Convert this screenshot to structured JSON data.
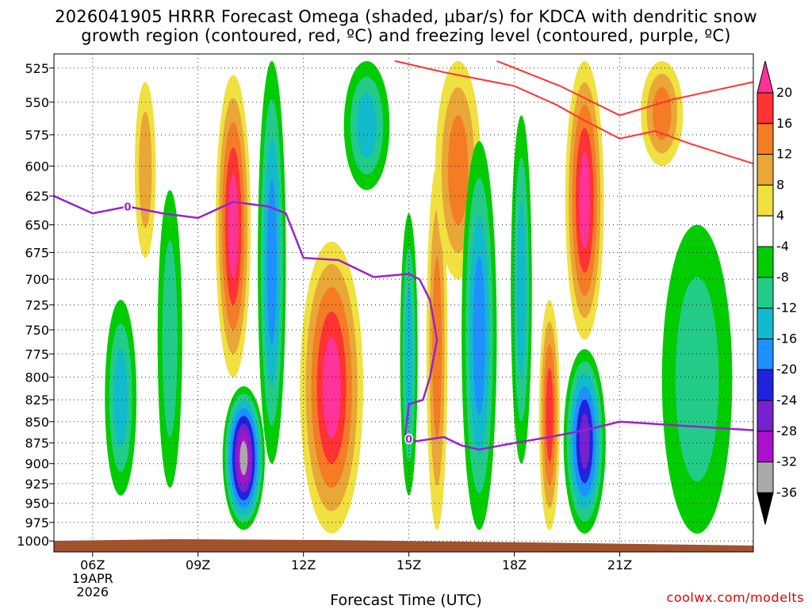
{
  "title_line1": "2026041905 HRRR Forecast Omega (shaded, µbar/s) for KDCA with dendritic snow",
  "title_line2": "growth region (contoured, red, ºC) and freezing level (contoured, purple, ºC)",
  "xlabel": "Forecast Time (UTC)",
  "credit": "coolwx.com/modelts",
  "chart_data": {
    "type": "heatmap",
    "x_domain_hours": [
      4.9,
      24.8
    ],
    "y_axis": {
      "label": "",
      "ticks": [
        525,
        550,
        575,
        600,
        625,
        650,
        675,
        700,
        725,
        750,
        775,
        800,
        825,
        850,
        875,
        900,
        925,
        950,
        975,
        1000
      ],
      "log_scale": true
    },
    "x_ticks": [
      {
        "hour": 6,
        "label": "06Z",
        "sub1": "19APR",
        "sub2": "2026"
      },
      {
        "hour": 9,
        "label": "09Z"
      },
      {
        "hour": 12,
        "label": "12Z"
      },
      {
        "hour": 15,
        "label": "15Z"
      },
      {
        "hour": 18,
        "label": "18Z"
      },
      {
        "hour": 21,
        "label": "21Z"
      }
    ],
    "grid": true,
    "colorbar": {
      "labels": [
        "20",
        "16",
        "12",
        "8",
        "4",
        "-4",
        "-8",
        "-12",
        "-16",
        "-20",
        "-24",
        "-28",
        "-32",
        "-36"
      ],
      "bands": [
        {
          "from": 20,
          "to": 24,
          "color": "#ff3399"
        },
        {
          "from": 16,
          "to": 20,
          "color": "#ff3333"
        },
        {
          "from": 12,
          "to": 16,
          "color": "#f47c25"
        },
        {
          "from": 8,
          "to": 12,
          "color": "#e8a736"
        },
        {
          "from": 4,
          "to": 8,
          "color": "#f0e040"
        },
        {
          "from": -4,
          "to": 4,
          "color": "#ffffff"
        },
        {
          "from": -8,
          "to": -4,
          "color": "#00cc00"
        },
        {
          "from": -12,
          "to": -8,
          "color": "#22cc88"
        },
        {
          "from": -16,
          "to": -12,
          "color": "#11bbcc"
        },
        {
          "from": -20,
          "to": -16,
          "color": "#1e90ff"
        },
        {
          "from": -24,
          "to": -20,
          "color": "#2222dd"
        },
        {
          "from": -28,
          "to": -24,
          "color": "#7722cc"
        },
        {
          "from": -32,
          "to": -28,
          "color": "#aa11cc"
        },
        {
          "from": -36,
          "to": -32,
          "color": "#aaaaaa"
        },
        {
          "from": -40,
          "to": -36,
          "color": "#000000"
        }
      ]
    },
    "omega_cells": [
      {
        "hour": 7.5,
        "p_top": 535,
        "p_bot": 680,
        "peak": 8,
        "width_h": 0.6
      },
      {
        "hour": 8.2,
        "p_top": 620,
        "p_bot": 930,
        "peak": -8,
        "width_h": 0.7
      },
      {
        "hour": 6.8,
        "p_top": 720,
        "p_bot": 940,
        "peak": -12,
        "width_h": 0.9
      },
      {
        "hour": 10.0,
        "p_top": 530,
        "p_bot": 800,
        "peak": 24,
        "width_h": 1.0
      },
      {
        "hour": 10.3,
        "p_top": 810,
        "p_bot": 985,
        "peak": -34,
        "width_h": 1.2
      },
      {
        "hour": 11.1,
        "p_top": 520,
        "p_bot": 900,
        "peak": -18,
        "width_h": 0.8
      },
      {
        "hour": 12.8,
        "p_top": 665,
        "p_bot": 990,
        "peak": 24,
        "width_h": 1.8
      },
      {
        "hour": 13.8,
        "p_top": 520,
        "p_bot": 620,
        "peak": -12,
        "width_h": 1.3
      },
      {
        "hour": 15.0,
        "p_top": 640,
        "p_bot": 940,
        "peak": -12,
        "width_h": 0.5
      },
      {
        "hour": 15.8,
        "p_top": 600,
        "p_bot": 985,
        "peak": 12,
        "width_h": 0.6
      },
      {
        "hour": 16.4,
        "p_top": 520,
        "p_bot": 700,
        "peak": 12,
        "width_h": 1.3
      },
      {
        "hour": 17.0,
        "p_top": 580,
        "p_bot": 985,
        "peak": -18,
        "width_h": 1.0
      },
      {
        "hour": 18.2,
        "p_top": 560,
        "p_bot": 900,
        "peak": -14,
        "width_h": 0.6
      },
      {
        "hour": 19.0,
        "p_top": 720,
        "p_bot": 985,
        "peak": 18,
        "width_h": 0.6
      },
      {
        "hour": 20.0,
        "p_top": 520,
        "p_bot": 760,
        "peak": 24,
        "width_h": 1.1
      },
      {
        "hour": 20.0,
        "p_top": 770,
        "p_bot": 990,
        "peak": -26,
        "width_h": 1.2
      },
      {
        "hour": 22.2,
        "p_top": 520,
        "p_bot": 600,
        "peak": 12,
        "width_h": 1.2
      },
      {
        "hour": 23.2,
        "p_top": 650,
        "p_bot": 990,
        "peak": -10,
        "width_h": 2.0
      }
    ],
    "red_contours": [
      {
        "points": [
          [
            14.6,
            520
          ],
          [
            16,
            528
          ],
          [
            18,
            538
          ],
          [
            19.2,
            552
          ],
          [
            20,
            564
          ],
          [
            21,
            578
          ],
          [
            22,
            572
          ],
          [
            23,
            582
          ],
          [
            24.8,
            598
          ]
        ]
      },
      {
        "points": [
          [
            17.5,
            520
          ],
          [
            19.3,
            538
          ],
          [
            21,
            560
          ],
          [
            22.5,
            548
          ],
          [
            24.8,
            535
          ]
        ]
      }
    ],
    "freezing_level": {
      "label": "0",
      "label_points": [
        [
          7.0,
          634
        ],
        [
          15.0,
          870
        ]
      ],
      "points": [
        [
          4.9,
          625
        ],
        [
          6.0,
          640
        ],
        [
          7.0,
          634
        ],
        [
          8.0,
          640
        ],
        [
          9.0,
          644
        ],
        [
          10.0,
          630
        ],
        [
          11.0,
          634
        ],
        [
          11.5,
          640
        ],
        [
          12.0,
          680
        ],
        [
          13.0,
          682
        ],
        [
          14.0,
          698
        ],
        [
          15.0,
          695
        ],
        [
          15.3,
          700
        ],
        [
          15.6,
          720
        ],
        [
          15.8,
          760
        ],
        [
          15.6,
          800
        ],
        [
          15.4,
          825
        ],
        [
          15.0,
          830
        ],
        [
          14.9,
          865
        ],
        [
          15.2,
          873
        ],
        [
          16.0,
          868
        ],
        [
          16.5,
          878
        ],
        [
          17.0,
          883
        ],
        [
          18.0,
          875
        ],
        [
          19.0,
          868
        ],
        [
          20.0,
          860
        ],
        [
          21.0,
          850
        ],
        [
          24.8,
          860
        ]
      ]
    },
    "terrain": "surface"
  }
}
